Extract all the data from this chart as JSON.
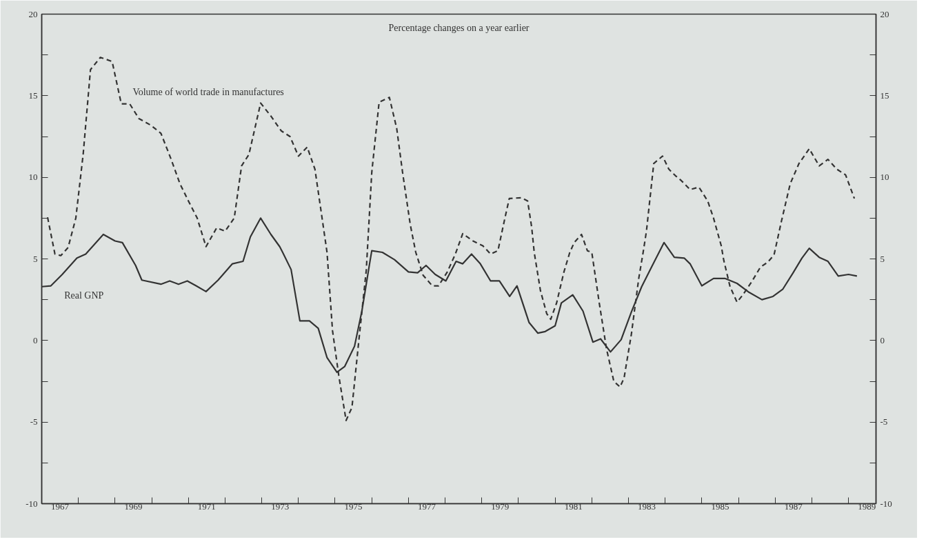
{
  "chart_data": {
    "type": "line",
    "annotations": [
      "Percentage changes on a year earlier"
    ],
    "xlim": [
      1967,
      1989.75
    ],
    "ylim": [
      -10,
      20
    ],
    "y2lim": [
      -10,
      20
    ],
    "xticks": [
      {
        "value": 1968,
        "label": null
      },
      {
        "value": 1969,
        "label": null
      },
      {
        "value": 1970,
        "label": null
      },
      {
        "value": 1971,
        "label": null
      },
      {
        "value": 1972,
        "label": null
      },
      {
        "value": 1973,
        "label": null
      },
      {
        "value": 1974,
        "label": null
      },
      {
        "value": 1975,
        "label": null
      },
      {
        "value": 1976,
        "label": null
      },
      {
        "value": 1977,
        "label": null
      },
      {
        "value": 1978,
        "label": null
      },
      {
        "value": 1979,
        "label": null
      },
      {
        "value": 1980,
        "label": null
      },
      {
        "value": 1981,
        "label": null
      },
      {
        "value": 1982,
        "label": null
      },
      {
        "value": 1983,
        "label": null
      },
      {
        "value": 1984,
        "label": null
      },
      {
        "value": 1985,
        "label": null
      },
      {
        "value": 1986,
        "label": null
      },
      {
        "value": 1987,
        "label": null
      },
      {
        "value": 1988,
        "label": null
      },
      {
        "value": 1989,
        "label": null
      },
      {
        "value": 1967.5,
        "label": "1967"
      },
      {
        "value": 1969.5,
        "label": "1969"
      },
      {
        "value": 1971.5,
        "label": "1971"
      },
      {
        "value": 1973.5,
        "label": "1973"
      },
      {
        "value": 1975.5,
        "label": "1975"
      },
      {
        "value": 1977.5,
        "label": "1977"
      },
      {
        "value": 1979.5,
        "label": "1979"
      },
      {
        "value": 1981.5,
        "label": "1981"
      },
      {
        "value": 1983.5,
        "label": "1983"
      },
      {
        "value": 1985.5,
        "label": "1985"
      },
      {
        "value": 1987.5,
        "label": "1987"
      },
      {
        "value": 1989.5,
        "label": "1989"
      }
    ],
    "yticks": [
      -10,
      -5,
      0,
      5,
      10,
      15,
      20,
      {
        "value": -7.5,
        "label": null
      },
      {
        "value": -2.5,
        "label": null
      },
      {
        "value": 2.5,
        "label": null
      },
      {
        "value": 7.5,
        "label": null
      },
      {
        "value": 12.5,
        "label": null
      },
      {
        "value": 17.5,
        "label": null
      }
    ],
    "y2ticks": [
      -10,
      -5,
      0,
      5,
      10,
      15,
      20,
      {
        "value": -7.5,
        "label": null
      },
      {
        "value": -2.5,
        "label": null
      },
      {
        "value": 2.5,
        "label": null
      },
      {
        "value": 7.5,
        "label": null
      },
      {
        "value": 12.5,
        "label": null
      },
      {
        "value": 17.5,
        "label": null
      }
    ],
    "grid": false,
    "legend": false,
    "marker": "none",
    "series": [
      {
        "name": "Real GNP",
        "color": "#333333",
        "line_style": "solid",
        "x": [
          1967.0,
          1967.25,
          1967.56,
          1967.96,
          1968.2,
          1968.68,
          1969.0,
          1969.2,
          1969.56,
          1969.73,
          1970.25,
          1970.49,
          1970.73,
          1970.97,
          1971.21,
          1971.48,
          1971.81,
          1972.2,
          1972.49,
          1972.69,
          1972.97,
          1973.25,
          1973.49,
          1973.57,
          1973.8,
          1974.04,
          1974.3,
          1974.54,
          1974.78,
          1975.05,
          1975.26,
          1975.53,
          1975.73,
          1975.94,
          1976.0,
          1976.29,
          1976.62,
          1977.0,
          1977.25,
          1977.48,
          1977.73,
          1978.02,
          1978.3,
          1978.48,
          1978.72,
          1978.96,
          1979.24,
          1979.48,
          1979.76,
          1979.96,
          1980.29,
          1980.53,
          1980.73,
          1981.0,
          1981.17,
          1981.48,
          1981.76,
          1982.03,
          1982.24,
          1982.51,
          1982.8,
          1983.08,
          1983.36,
          1983.63,
          1983.97,
          1984.25,
          1984.52,
          1984.68,
          1985.0,
          1985.32,
          1985.64,
          1985.96,
          1986.29,
          1986.64,
          1986.94,
          1987.21,
          1987.49,
          1987.73,
          1987.93,
          1988.2,
          1988.44,
          1988.72,
          1989.0,
          1989.23
        ],
        "values": [
          3.3,
          3.35,
          4.05,
          5.05,
          5.3,
          6.5,
          6.1,
          6.0,
          4.6,
          3.7,
          3.45,
          3.65,
          3.45,
          3.65,
          3.35,
          3.0,
          3.7,
          4.7,
          4.85,
          6.35,
          7.5,
          6.5,
          5.75,
          5.4,
          4.35,
          1.2,
          1.2,
          0.75,
          -1.05,
          -1.95,
          -1.6,
          -0.35,
          1.8,
          4.7,
          5.5,
          5.4,
          4.95,
          4.2,
          4.15,
          4.6,
          4.05,
          3.65,
          4.85,
          4.7,
          5.3,
          4.7,
          3.65,
          3.65,
          2.7,
          3.35,
          1.1,
          0.45,
          0.55,
          0.9,
          2.3,
          2.8,
          1.8,
          -0.1,
          0.1,
          -0.7,
          0.05,
          1.75,
          3.3,
          4.5,
          6.0,
          5.1,
          5.05,
          4.7,
          3.35,
          3.8,
          3.8,
          3.5,
          2.95,
          2.5,
          2.7,
          3.15,
          4.15,
          5.05,
          5.65,
          5.1,
          4.85,
          3.95,
          4.05,
          3.95
        ]
      },
      {
        "name": "Volume of world trade in manufactures",
        "color": "#333333",
        "line_style": "dashed",
        "x": [
          1967.16,
          1967.36,
          1967.52,
          1967.72,
          1967.93,
          1968.13,
          1968.33,
          1968.6,
          1968.92,
          1969.17,
          1969.4,
          1969.65,
          1969.97,
          1970.25,
          1970.53,
          1970.77,
          1971.0,
          1971.24,
          1971.48,
          1971.77,
          1972.0,
          1972.25,
          1972.45,
          1972.65,
          1972.97,
          1973.25,
          1973.53,
          1973.77,
          1974.0,
          1974.24,
          1974.45,
          1974.6,
          1974.78,
          1974.93,
          1975.1,
          1975.3,
          1975.46,
          1975.65,
          1975.85,
          1976.0,
          1976.2,
          1976.48,
          1976.68,
          1976.84,
          1977.05,
          1977.2,
          1977.4,
          1977.65,
          1977.82,
          1978.06,
          1978.28,
          1978.48,
          1978.76,
          1979.03,
          1979.24,
          1979.44,
          1979.64,
          1979.75,
          1980.08,
          1980.25,
          1980.36,
          1980.43,
          1980.6,
          1980.77,
          1980.88,
          1981.04,
          1981.24,
          1981.4,
          1981.52,
          1981.72,
          1981.88,
          1982.0,
          1982.2,
          1982.4,
          1982.6,
          1982.77,
          1982.88,
          1983.08,
          1983.28,
          1983.4,
          1983.49,
          1983.69,
          1983.93,
          1984.1,
          1984.28,
          1984.44,
          1984.68,
          1984.92,
          1985.16,
          1985.32,
          1985.53,
          1985.6,
          1985.77,
          1985.96,
          1986.12,
          1986.36,
          1986.6,
          1986.8,
          1986.97,
          1987.17,
          1987.41,
          1987.65,
          1987.93,
          1988.2,
          1988.44,
          1988.68,
          1988.92,
          1989.16
        ],
        "values": [
          7.55,
          5.3,
          5.2,
          5.7,
          7.5,
          11.4,
          16.6,
          17.35,
          17.1,
          14.5,
          14.5,
          13.6,
          13.2,
          12.7,
          11.1,
          9.6,
          8.55,
          7.5,
          5.75,
          6.9,
          6.7,
          7.5,
          10.7,
          11.4,
          14.55,
          13.75,
          12.85,
          12.5,
          11.3,
          11.85,
          10.5,
          8.2,
          5.4,
          0.6,
          -2.15,
          -4.9,
          -4.1,
          0.05,
          4.3,
          10.3,
          14.6,
          14.9,
          13.0,
          10.3,
          7.1,
          5.4,
          4.0,
          3.35,
          3.35,
          4.2,
          5.3,
          6.55,
          6.1,
          5.8,
          5.3,
          5.5,
          7.6,
          8.7,
          8.75,
          8.55,
          6.95,
          5.4,
          3.05,
          1.65,
          1.3,
          2.3,
          4.2,
          5.4,
          6.0,
          6.5,
          5.5,
          5.4,
          2.35,
          -0.5,
          -2.5,
          -2.85,
          -2.3,
          0.4,
          3.8,
          5.4,
          6.7,
          10.85,
          11.3,
          10.5,
          10.1,
          9.8,
          9.25,
          9.4,
          8.55,
          7.5,
          5.8,
          4.9,
          3.3,
          2.35,
          2.8,
          3.6,
          4.5,
          4.8,
          5.25,
          7.3,
          9.6,
          10.85,
          11.75,
          10.7,
          11.1,
          10.5,
          10.15,
          8.7
        ]
      }
    ]
  }
}
